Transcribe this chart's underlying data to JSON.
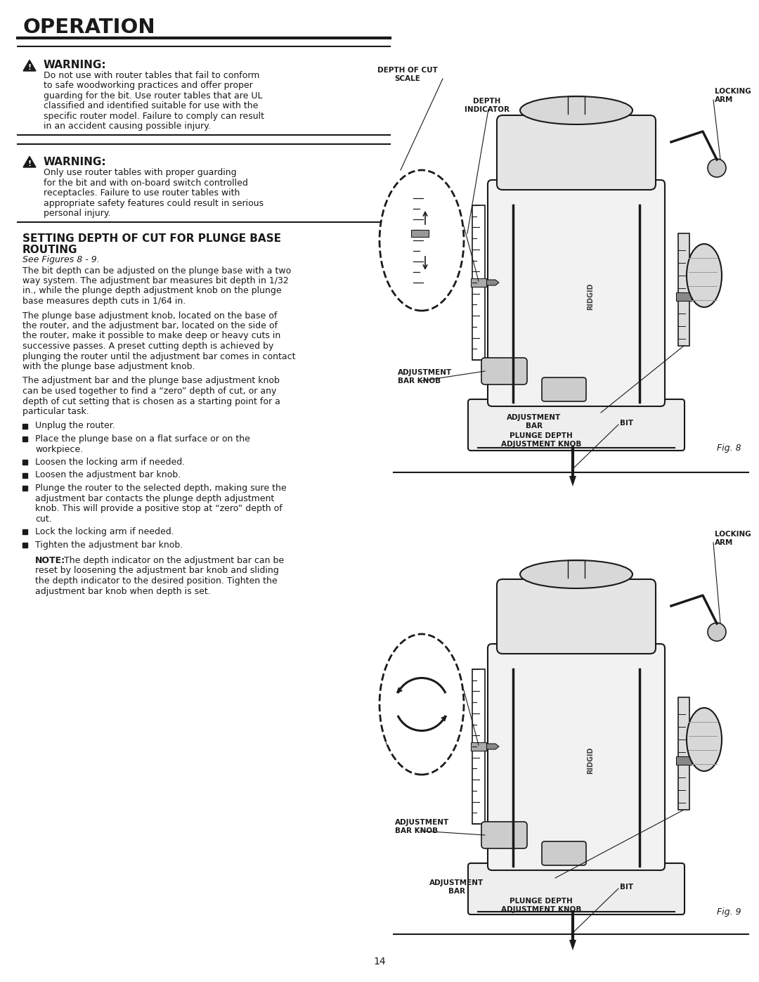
{
  "page_title": "OPERATION",
  "bg_color": "#ffffff",
  "text_color": "#1a1a1a",
  "warning1_title": "WARNING:",
  "warning1_lines": [
    "Do not use with router tables that fail to conform",
    "to safe woodworking practices and offer proper",
    "guarding for the bit. Use router tables that are UL",
    "classified and identified suitable for use with the",
    "specific router model. Failure to comply can result",
    "in an accident causing possible injury."
  ],
  "warning2_title": "WARNING:",
  "warning2_lines": [
    "Only use router tables with proper guarding",
    "for the bit and with on-board switch controlled",
    "receptacles. Failure to use router tables with",
    "appropriate safety features could result in serious",
    "personal injury."
  ],
  "section_title_line1": "SETTING DEPTH OF CUT FOR PLUNGE BASE",
  "section_title_line2": "ROUTING",
  "section_subtitle": "See Figures 8 - 9.",
  "para1_lines": [
    "The bit depth can be adjusted on the plunge base with a two",
    "way system. The adjustment bar measures bit depth in 1/32",
    "in., while the plunge depth adjustment knob on the plunge",
    "base measures depth cuts in 1/64 in."
  ],
  "para2_lines": [
    "The plunge base adjustment knob, located on the base of",
    "the router, and the adjustment bar, located on the side of",
    "the router, make it possible to make deep or heavy cuts in",
    "successive passes. A preset cutting depth is achieved by",
    "plunging the router until the adjustment bar comes in contact",
    "with the plunge base adjustment knob."
  ],
  "para3_lines": [
    "The adjustment bar and the plunge base adjustment knob",
    "can be used together to find a “zero” depth of cut, or any",
    "depth of cut setting that is chosen as a starting point for a",
    "particular task."
  ],
  "bullets": [
    [
      "Unplug the router."
    ],
    [
      "Place the plunge base on a flat surface or on the",
      "workpiece."
    ],
    [
      "Loosen the locking arm if needed."
    ],
    [
      "Loosen the adjustment bar knob."
    ],
    [
      "Plunge the router to the selected depth, making sure the",
      "adjustment bar contacts the plunge depth adjustment",
      "knob. This will provide a positive stop at “zero” depth of",
      "cut."
    ],
    [
      "Lock the locking arm if needed."
    ],
    [
      "Tighten the adjustment bar knob."
    ]
  ],
  "note_bold": "NOTE:",
  "note_lines": [
    " The depth indicator on the adjustment bar can be",
    "reset by loosening the adjustment bar knob and sliding",
    "the depth indicator to the desired position. Tighten the",
    "adjustment bar knob when depth is set."
  ],
  "page_number": "14",
  "fig8_caption": "Fig. 8",
  "fig9_caption": "Fig. 9"
}
